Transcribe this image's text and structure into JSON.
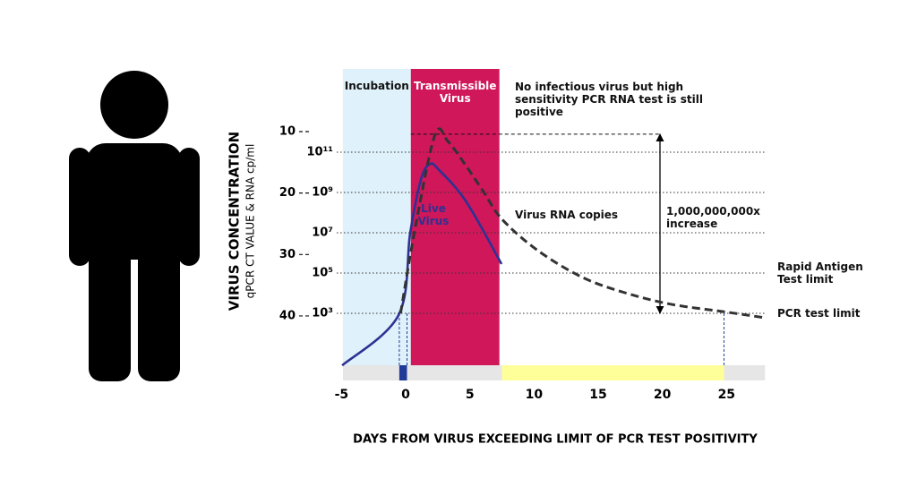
{
  "chart_data": {
    "type": "line",
    "x_label": "DAYS FROM VIRUS EXCEEDING LIMIT OF PCR TEST POSITIVITY",
    "y_label": "VIRUS CONCENTRATION",
    "y_sublabel": "qPCR CT VALUE & RNA cp/ml",
    "xlim": [
      -5,
      28
    ],
    "xticks": [
      -5,
      0,
      5,
      10,
      15,
      20,
      25
    ],
    "ylim": [
      1,
      10000000000000
    ],
    "log_y": true,
    "yticks": [
      {
        "value": 1000,
        "label": "10³"
      },
      {
        "value": 100000,
        "label": "10⁵"
      },
      {
        "value": 10000000,
        "label": "10⁷"
      },
      {
        "value": 1000000000,
        "label": "10⁹"
      },
      {
        "value": 100000000000,
        "label": "10¹¹"
      }
    ],
    "y2lim": [
      49.4,
      6.8
    ],
    "y2ticks": [
      10,
      20,
      30,
      40
    ],
    "grid": true,
    "series": [
      {
        "name": "Live Virus",
        "color": "#2e3192",
        "dashed": false,
        "x": [
          -4.95,
          -0.56,
          0.35,
          1.2,
          1.9,
          2.6,
          4.7,
          7.47
        ],
        "values": [
          2.6,
          810,
          10000000,
          4700000000,
          26000000000,
          13000000000,
          360000000,
          280000
        ]
      },
      {
        "name": "Virus RNA copies",
        "color": "#333333",
        "dashed": true,
        "x": [
          -0.4,
          0.8,
          2.3,
          3.3,
          4.7,
          6.1,
          7.5,
          10.3,
          13.8,
          17.2,
          20.7,
          24.8,
          28
        ],
        "values": [
          1000,
          28000000,
          780000000000,
          340000000000,
          21000000000,
          1000000000,
          47000000,
          1300000,
          60000,
          10000,
          2800,
          1200,
          600
        ]
      }
    ],
    "regions": [
      {
        "label": "Incubation",
        "start": -4.9,
        "end": 0.4,
        "color": "#dff1fa"
      },
      {
        "label": "Transmissible Virus",
        "start": 0.4,
        "end": 7.3,
        "color": "#d0175a"
      }
    ],
    "note": "No infectious virus but high sensitivity PCR RNA test is still positive",
    "increase_label": "1,000,000,000x increase",
    "thresholds": [
      {
        "label": "Rapid Antigen Test limit",
        "value": 100000
      },
      {
        "label": "PCR test limit",
        "value": 1000
      }
    ],
    "test_windows": [
      {
        "start": -0.5,
        "end": 0.1,
        "color": "#1f3b97"
      },
      {
        "start": 7.5,
        "end": 24.8,
        "color": "#ffff99"
      }
    ]
  }
}
